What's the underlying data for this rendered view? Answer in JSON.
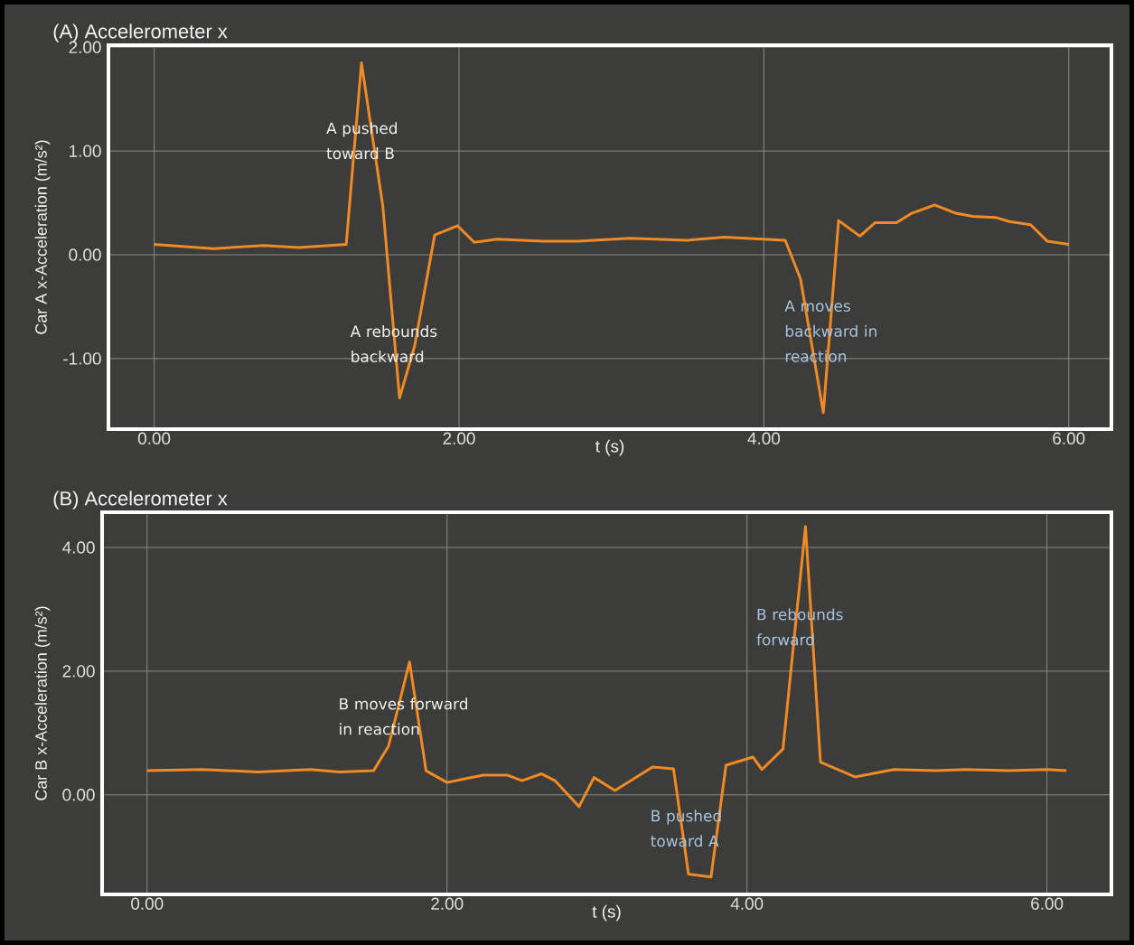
{
  "chart_data": [
    {
      "type": "line",
      "title": "(A) Accelerometer x",
      "xlabel": "t (s)",
      "ylabel": "Car A x-Acceleration (m/s²)",
      "x": [
        0,
        0.39,
        0.72,
        0.95,
        1.26,
        1.36,
        1.5,
        1.61,
        1.71,
        1.84,
        1.99,
        2.1,
        2.25,
        2.55,
        2.78,
        3.12,
        3.5,
        3.74,
        4.14,
        4.24,
        4.39,
        4.49,
        4.63,
        4.73,
        4.87,
        4.97,
        5.12,
        5.26,
        5.37,
        5.52,
        5.61,
        5.75,
        5.86,
        6.0
      ],
      "series": [
        {
          "color": "#f08a24",
          "values": [
            0.1,
            0.06,
            0.09,
            0.07,
            0.1,
            1.85,
            0.47,
            -1.38,
            -0.87,
            0.19,
            0.28,
            0.12,
            0.15,
            0.13,
            0.13,
            0.16,
            0.14,
            0.17,
            0.14,
            -0.23,
            -1.52,
            0.33,
            0.18,
            0.31,
            0.31,
            0.4,
            0.48,
            0.4,
            0.37,
            0.36,
            0.32,
            0.29,
            0.13,
            0.1
          ]
        }
      ],
      "xlim": [
        -0.3,
        6.28
      ],
      "ylim": [
        -1.68,
        2.02
      ],
      "xticks": [
        {
          "value": 0,
          "label": "0.00"
        },
        {
          "value": 2,
          "label": "2.00"
        },
        {
          "value": 4,
          "label": "4.00"
        },
        {
          "value": 6,
          "label": "6.00"
        }
      ],
      "yticks": [
        {
          "value": -1,
          "label": "-1.00"
        },
        {
          "value": 0,
          "label": "0.00"
        },
        {
          "value": 1,
          "label": "1.00"
        },
        {
          "value": 2,
          "label": "2.00"
        }
      ],
      "grid": true,
      "marker": "none",
      "line_style": "solid",
      "annotations": [
        "A pushed toward B",
        "A rebounds backward",
        "A moves backward in reaction"
      ]
    },
    {
      "type": "line",
      "title": "(B) Accelerometer x",
      "xlabel": "t (s)",
      "ylabel": "Car B x-Acceleration (m/s²)",
      "x": [
        0,
        0.37,
        0.74,
        1.09,
        1.28,
        1.51,
        1.61,
        1.75,
        1.86,
        2.0,
        2.24,
        2.4,
        2.5,
        2.63,
        2.72,
        2.88,
        2.98,
        3.12,
        3.37,
        3.51,
        3.61,
        3.76,
        3.86,
        4.04,
        4.1,
        4.24,
        4.39,
        4.49,
        4.72,
        4.98,
        5.26,
        5.46,
        5.75,
        6.0,
        6.13
      ],
      "series": [
        {
          "color": "#f08a24",
          "values": [
            0.39,
            0.41,
            0.37,
            0.41,
            0.37,
            0.39,
            0.79,
            2.15,
            0.39,
            0.2,
            0.32,
            0.32,
            0.23,
            0.34,
            0.23,
            -0.19,
            0.28,
            0.07,
            0.45,
            0.42,
            -1.28,
            -1.33,
            0.48,
            0.61,
            0.41,
            0.74,
            4.34,
            0.53,
            0.29,
            0.41,
            0.39,
            0.41,
            0.39,
            0.41,
            0.39
          ]
        }
      ],
      "xlim": [
        -0.3,
        6.43
      ],
      "ylim": [
        -1.61,
        4.57
      ],
      "xticks": [
        {
          "value": 0,
          "label": "0.00"
        },
        {
          "value": 2,
          "label": "2.00"
        },
        {
          "value": 4,
          "label": "4.00"
        },
        {
          "value": 6,
          "label": "6.00"
        }
      ],
      "yticks": [
        {
          "value": 0,
          "label": "0.00"
        },
        {
          "value": 2,
          "label": "2.00"
        },
        {
          "value": 4,
          "label": "4.00"
        }
      ],
      "grid": true,
      "marker": "none",
      "line_style": "solid",
      "annotations": [
        "B moves forward in reaction",
        "B pushed toward A",
        "B rebounds forward"
      ]
    }
  ]
}
